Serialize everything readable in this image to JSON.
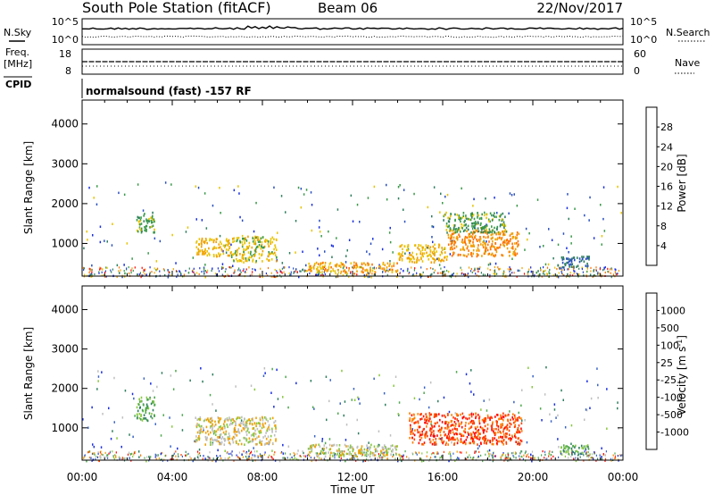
{
  "header": {
    "station": "South Pole Station (fitACF)",
    "beam": "Beam 06",
    "date": "22/Nov/2017"
  },
  "noise_panel": {
    "left_label": "N.Sky",
    "left_ticks": [
      "10^5",
      "10^0"
    ],
    "right_label": "N.Search",
    "right_ticks": [
      "10^5",
      "10^0"
    ]
  },
  "freq_panel": {
    "left_label_1": "Freq.",
    "left_label_2": "[MHz]",
    "left_ticks": [
      "18",
      "8"
    ],
    "right_label": "Nave",
    "right_ticks": [
      "60",
      "0"
    ]
  },
  "cpid": {
    "label": "CPID",
    "value": "normalsound (fast) -157 RF"
  },
  "colors": {
    "power_scale": [
      "#1a2fe0",
      "#2a4fc0",
      "#2f7f5f",
      "#3a9a4a",
      "#e8c400",
      "#f0a000",
      "#ff7000",
      "#ff0000"
    ],
    "velocity_scale": [
      "#1a2fe0",
      "#3a64c8",
      "#2f7f5f",
      "#4fa84f",
      "#88c840",
      "#bfbfbf",
      "#f0a000",
      "#ff8000",
      "#ff4000",
      "#ff0000"
    ]
  },
  "chart_data": [
    {
      "type": "heatmap",
      "name": "power",
      "ylabel": "Slant Range [km]",
      "yticks": [
        1000,
        2000,
        3000,
        4000
      ],
      "ylim": [
        180,
        4600
      ],
      "xlim_hours": [
        0,
        24
      ],
      "colorbar": {
        "label": "Power [dB]",
        "ticks": [
          "4",
          "8",
          "12",
          "16",
          "20",
          "24",
          "28"
        ],
        "range": [
          0,
          32
        ]
      },
      "regions": [
        {
          "t0": 2.4,
          "t1": 3.2,
          "r0": 1300,
          "r1": 1800,
          "value": 14
        },
        {
          "t0": 5.0,
          "t1": 6.6,
          "r0": 700,
          "r1": 1150,
          "value": 20
        },
        {
          "t0": 6.6,
          "t1": 8.6,
          "r0": 550,
          "r1": 1200,
          "value": 18
        },
        {
          "t0": 10.0,
          "t1": 14.0,
          "r0": 300,
          "r1": 550,
          "value": 22
        },
        {
          "t0": 14.0,
          "t1": 16.2,
          "r0": 550,
          "r1": 1000,
          "value": 20
        },
        {
          "t0": 16.2,
          "t1": 19.4,
          "r0": 700,
          "r1": 1350,
          "value": 24
        },
        {
          "t0": 16.0,
          "t1": 18.8,
          "r0": 1300,
          "r1": 1800,
          "value": 14
        },
        {
          "t0": 21.0,
          "t1": 22.5,
          "r0": 400,
          "r1": 700,
          "value": 8
        }
      ]
    },
    {
      "type": "heatmap",
      "name": "velocity",
      "ylabel": "Slant Range [km]",
      "yticks": [
        1000,
        2000,
        3000,
        4000
      ],
      "ylim": [
        180,
        4600
      ],
      "xlim_hours": [
        0,
        24
      ],
      "xticks": [
        "00:00",
        "04:00",
        "08:00",
        "12:00",
        "16:00",
        "20:00",
        "00:00"
      ],
      "xlabel": "Time UT",
      "colorbar": {
        "label": "Velocity [m s^-1]",
        "ticks": [
          "1000",
          "500",
          "100",
          "25",
          "-25",
          "-100",
          "-500",
          "-1000"
        ],
        "range": [
          -1000,
          1000
        ]
      },
      "regions": [
        {
          "t0": 2.4,
          "t1": 3.2,
          "r0": 1200,
          "r1": 1800,
          "value": -300
        },
        {
          "t0": 5.0,
          "t1": 8.6,
          "r0": 600,
          "r1": 1300,
          "value": 150
        },
        {
          "t0": 10.0,
          "t1": 14.0,
          "r0": 300,
          "r1": 600,
          "value": 80
        },
        {
          "t0": 14.5,
          "t1": 19.5,
          "r0": 600,
          "r1": 1400,
          "value": 700
        },
        {
          "t0": 21.2,
          "t1": 22.5,
          "r0": 350,
          "r1": 600,
          "value": -300
        }
      ]
    }
  ]
}
